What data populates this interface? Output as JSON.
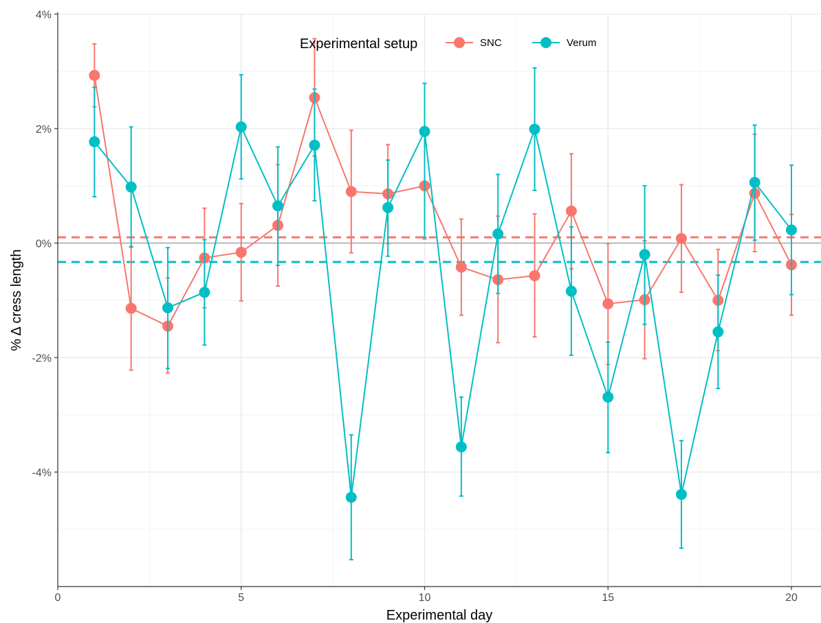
{
  "chart_data": {
    "type": "line",
    "xlabel": "Experimental day",
    "ylabel": "% Δ cress length",
    "xlim": [
      0,
      20.8
    ],
    "ylim": [
      -6.0,
      4.0
    ],
    "x_ticks": [
      0,
      5,
      10,
      15,
      20
    ],
    "x_tick_labels": [
      "0",
      "5",
      "10",
      "15",
      "20"
    ],
    "y_ticks": [
      -4,
      -2,
      0,
      2,
      4
    ],
    "y_tick_labels": [
      "-4%",
      "-2%",
      "0%",
      "2%",
      "4%"
    ],
    "grid": true,
    "reference_line_y": 0,
    "legend": {
      "title": "Experimental setup",
      "position": "top-center"
    },
    "series": [
      {
        "name": "SNC",
        "color": "#F8766D",
        "mean_line": 0.1,
        "x": [
          1,
          2,
          3,
          4,
          5,
          6,
          7,
          8,
          9,
          10,
          11,
          12,
          13,
          14,
          15,
          16,
          17,
          18,
          19,
          20
        ],
        "y": [
          2.93,
          -1.14,
          -1.45,
          -0.26,
          -0.16,
          0.31,
          2.54,
          0.9,
          0.86,
          1.0,
          -0.42,
          -0.64,
          -0.57,
          0.56,
          -1.06,
          -0.99,
          0.08,
          -1.0,
          0.87,
          -0.38
        ],
        "err_low": [
          2.38,
          -2.22,
          -2.27,
          -1.13,
          -1.01,
          -0.75,
          1.52,
          -0.17,
          -0.01,
          0.07,
          -1.26,
          -1.74,
          -1.64,
          -0.45,
          -2.12,
          -2.02,
          -0.86,
          -1.88,
          -0.15,
          -1.26
        ],
        "err_high": [
          3.48,
          -0.06,
          -0.61,
          0.61,
          0.69,
          1.37,
          3.57,
          1.97,
          1.72,
          1.93,
          0.42,
          0.47,
          0.51,
          1.56,
          -0.01,
          0.04,
          1.02,
          -0.11,
          1.9,
          0.5
        ]
      },
      {
        "name": "Verum",
        "color": "#00BFC4",
        "mean_line": -0.33,
        "x": [
          1,
          2,
          3,
          4,
          5,
          6,
          7,
          8,
          9,
          10,
          11,
          12,
          13,
          14,
          15,
          16,
          17,
          18,
          19,
          20
        ],
        "y": [
          1.77,
          0.98,
          -1.13,
          -0.86,
          2.03,
          0.65,
          1.71,
          -4.44,
          0.62,
          1.95,
          -3.56,
          0.16,
          1.99,
          -0.84,
          -2.69,
          -0.2,
          -4.39,
          -1.55,
          1.06,
          0.23
        ],
        "err_low": [
          0.81,
          -0.07,
          -2.19,
          -1.78,
          1.12,
          -0.39,
          0.74,
          -5.53,
          -0.23,
          0.1,
          -4.42,
          -0.88,
          0.92,
          -1.96,
          -3.66,
          -1.42,
          -5.33,
          -2.54,
          0.05,
          -0.9
        ],
        "err_high": [
          2.72,
          2.03,
          -0.08,
          0.06,
          2.94,
          1.68,
          2.69,
          -3.35,
          1.45,
          2.79,
          -2.69,
          1.2,
          3.06,
          0.28,
          -1.73,
          1.0,
          -3.45,
          -0.56,
          2.06,
          1.36
        ]
      }
    ]
  }
}
